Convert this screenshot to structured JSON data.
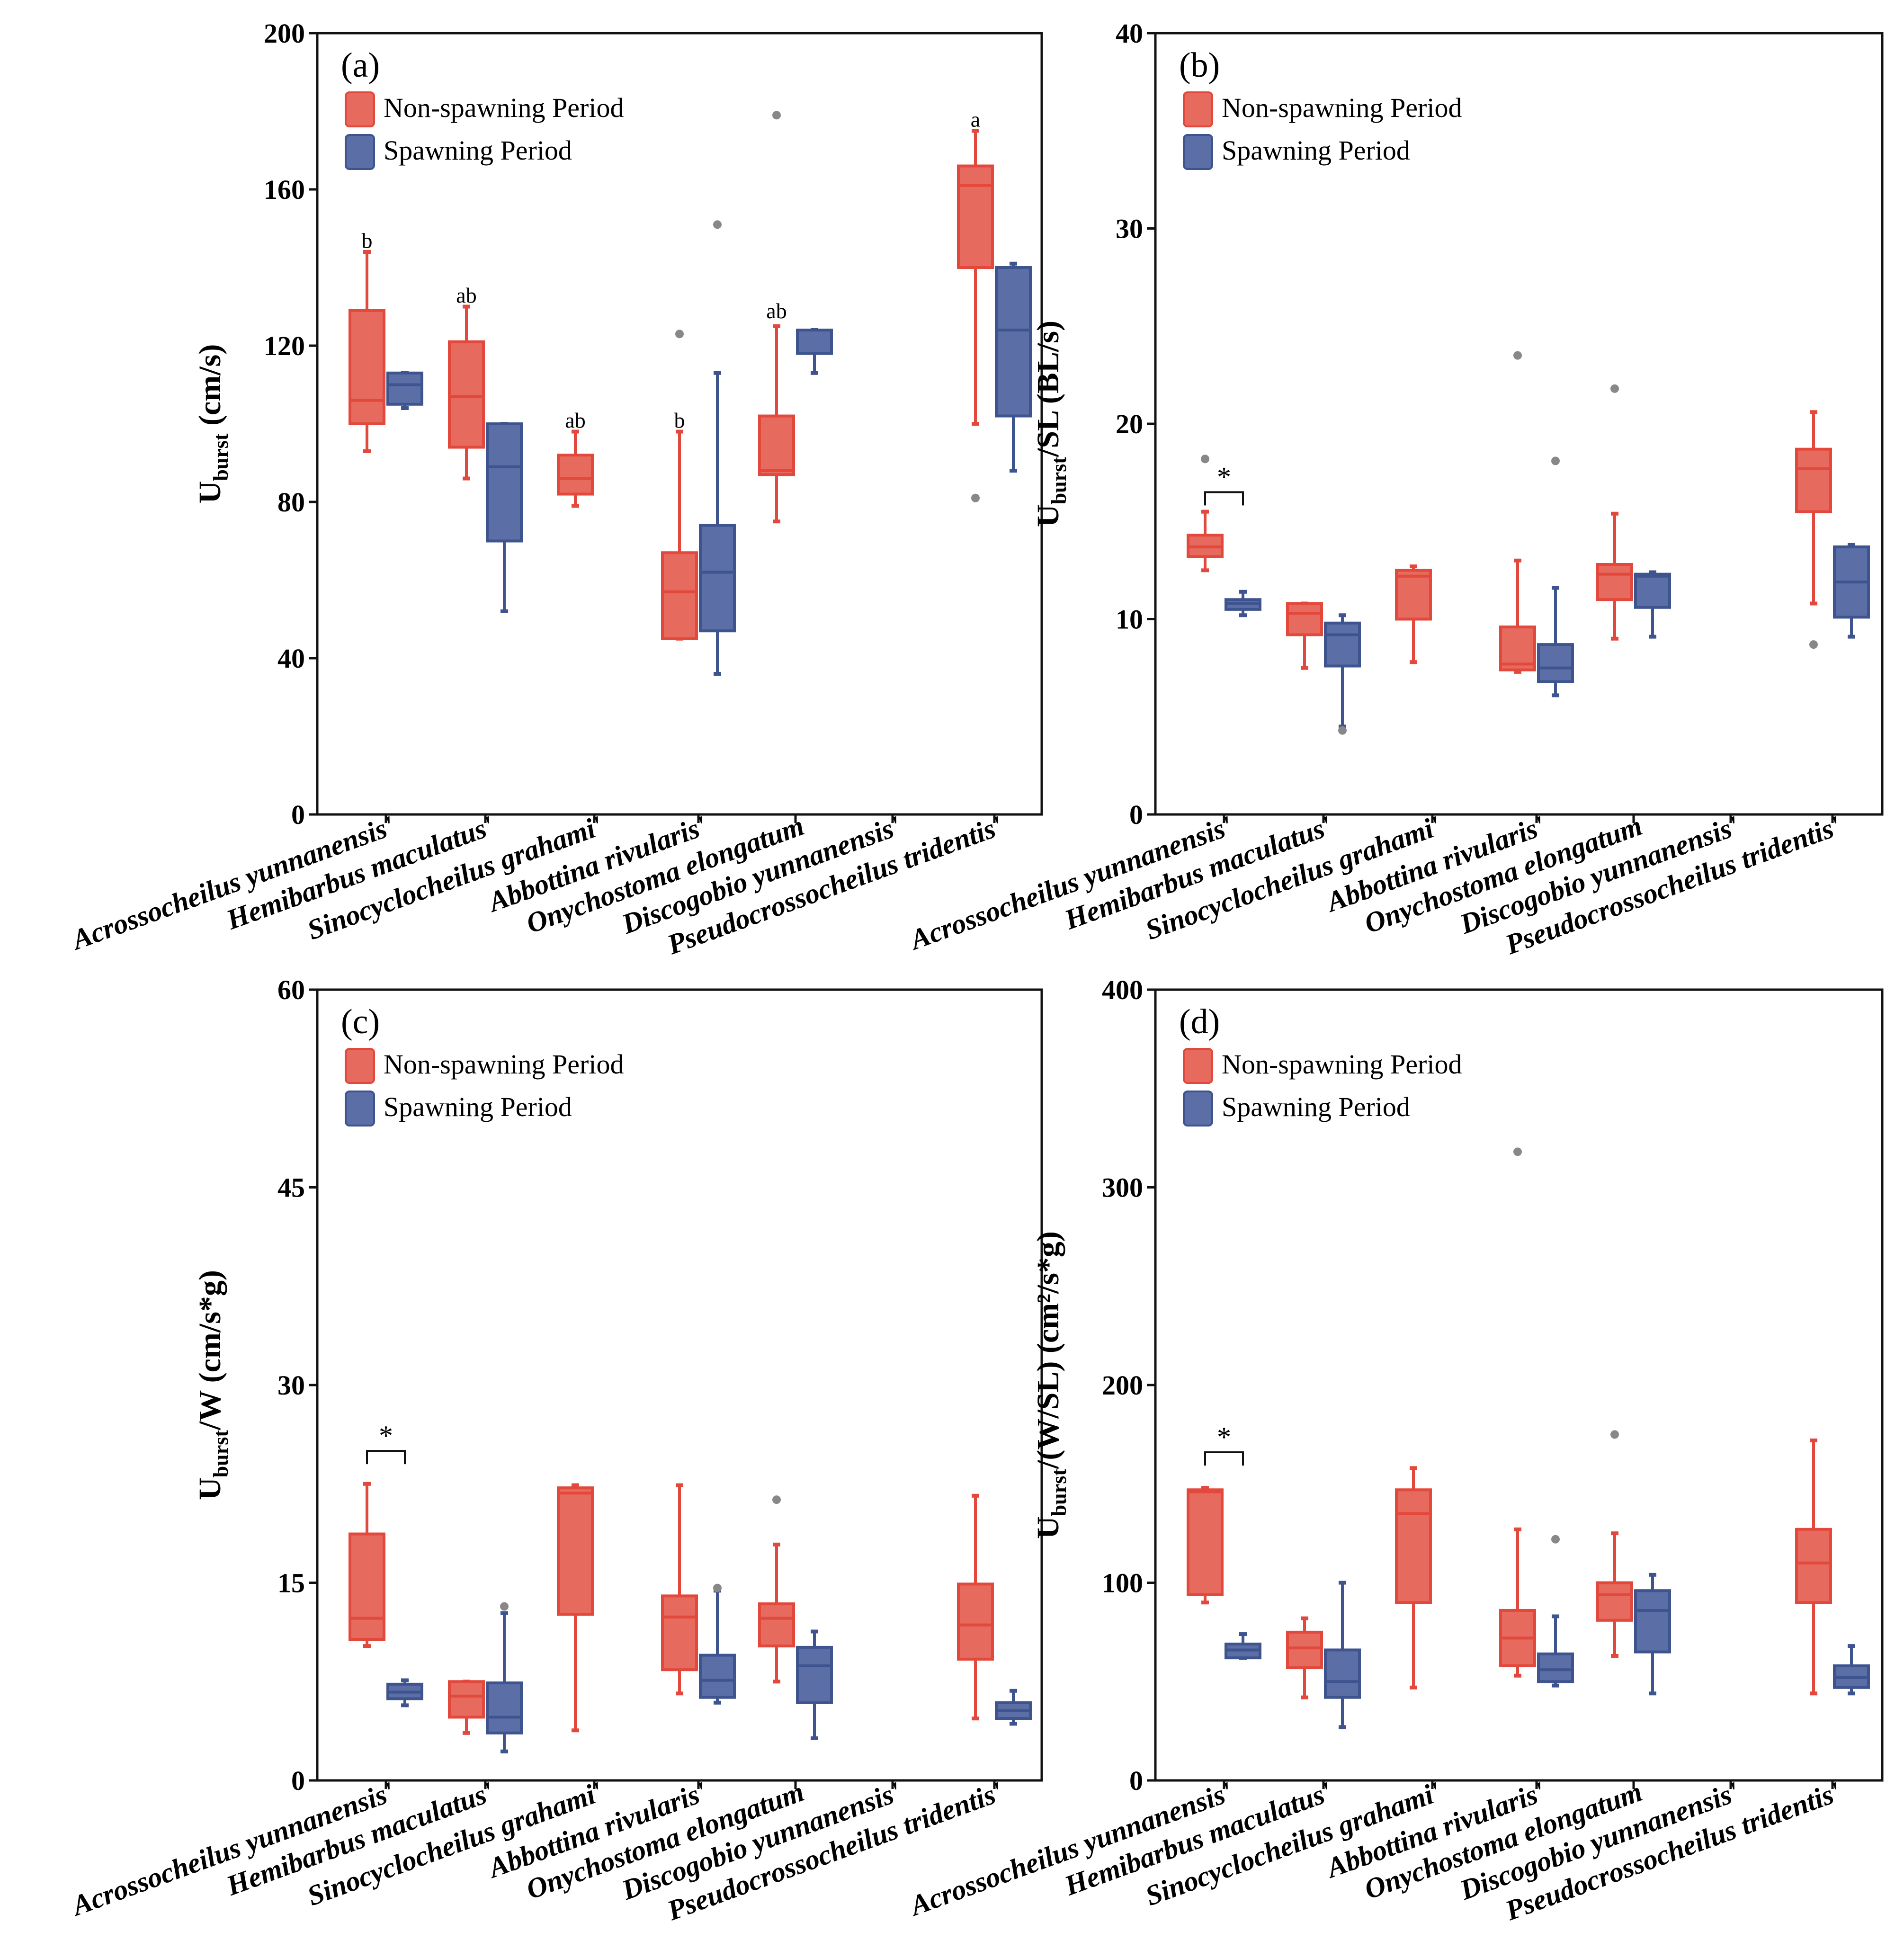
{
  "colors": {
    "non_spawning_fill": "#e66a5d",
    "non_spawning_edge": "#e2483c",
    "spawning_fill": "#5b6ea6",
    "spawning_edge": "#3e548f",
    "outlier": "#888888",
    "axis": "#111111"
  },
  "legend": {
    "non_spawning": "Non-spawning Period",
    "spawning": "Spawning Period"
  },
  "chart_data": [
    {
      "id": "a",
      "type": "box",
      "panel_label": "(a)",
      "ylabel": {
        "main": "U",
        "sub": "burst",
        "rest": " (cm/s)"
      },
      "ylim": [
        0,
        200
      ],
      "yticks": [
        0,
        40,
        80,
        120,
        160,
        200
      ],
      "categories": [
        "Acrossocheilus yunnanensis'",
        "Hemibarbus maculatus'",
        "Sinocyclocheilus grahami'",
        "Abbottina rivularis'",
        "Onychostoma elongatum",
        "Discogobio yunnanensis'",
        "Pseudocrossocheilus tridentis'"
      ],
      "series": [
        {
          "name": "Non-spawning Period",
          "boxes": [
            {
              "whislo": 93,
              "q1": 100,
              "med": 106,
              "q3": 129,
              "whishi": 144,
              "fliers": []
            },
            {
              "whislo": 86,
              "q1": 94,
              "med": 107,
              "q3": 121,
              "whishi": 130,
              "fliers": []
            },
            {
              "whislo": 79,
              "q1": 82,
              "med": 86,
              "q3": 92,
              "whishi": 98,
              "fliers": []
            },
            {
              "whislo": 45,
              "q1": 45,
              "med": 57,
              "q3": 67,
              "whishi": 98,
              "fliers": [
                123
              ]
            },
            {
              "whislo": 75,
              "q1": 87,
              "med": 88,
              "q3": 102,
              "whishi": 125,
              "fliers": [
                179
              ]
            },
            null,
            {
              "whislo": 100,
              "q1": 140,
              "med": 161,
              "q3": 166,
              "whishi": 175,
              "fliers": [
                81
              ]
            }
          ]
        },
        {
          "name": "Spawning Period",
          "boxes": [
            {
              "whislo": 104,
              "q1": 105,
              "med": 110,
              "q3": 113,
              "whishi": 113,
              "fliers": []
            },
            {
              "whislo": 52,
              "q1": 70,
              "med": 89,
              "q3": 100,
              "whishi": 100,
              "fliers": []
            },
            null,
            {
              "whislo": 36,
              "q1": 47,
              "med": 62,
              "q3": 74,
              "whishi": 113,
              "fliers": [
                151
              ]
            },
            {
              "whislo": 113,
              "q1": 118,
              "med": 118,
              "q3": 124,
              "whishi": 124,
              "fliers": []
            },
            null,
            {
              "whislo": 88,
              "q1": 102,
              "med": 124,
              "q3": 140,
              "whishi": 141,
              "fliers": []
            }
          ]
        }
      ],
      "annotations": [
        {
          "text": "b",
          "category": 0,
          "y": 147
        },
        {
          "text": "ab",
          "category": 1,
          "y": 133
        },
        {
          "text": "ab",
          "category": 2,
          "y": 101
        },
        {
          "text": "b",
          "category": 3,
          "y": 101
        },
        {
          "text": "ab",
          "category": 4,
          "y": 129
        },
        {
          "text": "a",
          "category": 6,
          "y": 178
        }
      ],
      "sig_brackets": []
    },
    {
      "id": "b",
      "type": "box",
      "panel_label": "(b)",
      "ylabel": {
        "main": "U",
        "sub": "burst",
        "rest": "/SL (BL/s)"
      },
      "ylim": [
        0,
        40
      ],
      "yticks": [
        0,
        10,
        20,
        30,
        40
      ],
      "categories": [
        "Acrossocheilus yunnanensis'",
        "Hemibarbus maculatus'",
        "Sinocyclocheilus grahami'",
        "Abbottina rivularis'",
        "Onychostoma elongatum",
        "Discogobio yunnanensis'",
        "Pseudocrossocheilus tridentis'"
      ],
      "series": [
        {
          "name": "Non-spawning Period",
          "boxes": [
            {
              "whislo": 12.5,
              "q1": 13.2,
              "med": 13.7,
              "q3": 14.3,
              "whishi": 15.5,
              "fliers": [
                18.2
              ]
            },
            {
              "whislo": 7.5,
              "q1": 9.2,
              "med": 10.3,
              "q3": 10.8,
              "whishi": 10.8,
              "fliers": []
            },
            {
              "whislo": 7.8,
              "q1": 10.0,
              "med": 12.2,
              "q3": 12.5,
              "whishi": 12.7,
              "fliers": []
            },
            {
              "whislo": 7.3,
              "q1": 7.4,
              "med": 7.7,
              "q3": 9.6,
              "whishi": 13.0,
              "fliers": [
                23.5
              ]
            },
            {
              "whislo": 9.0,
              "q1": 11.0,
              "med": 12.3,
              "q3": 12.8,
              "whishi": 15.4,
              "fliers": [
                21.8
              ]
            },
            null,
            {
              "whislo": 10.8,
              "q1": 15.5,
              "med": 17.7,
              "q3": 18.7,
              "whishi": 20.6,
              "fliers": [
                8.7
              ]
            }
          ]
        },
        {
          "name": "Spawning Period",
          "boxes": [
            {
              "whislo": 10.2,
              "q1": 10.5,
              "med": 10.8,
              "q3": 11.0,
              "whishi": 11.4,
              "fliers": []
            },
            {
              "whislo": 4.5,
              "q1": 7.6,
              "med": 9.2,
              "q3": 9.8,
              "whishi": 10.2,
              "fliers": [
                4.3
              ]
            },
            null,
            {
              "whislo": 6.1,
              "q1": 6.8,
              "med": 7.5,
              "q3": 8.7,
              "whishi": 11.6,
              "fliers": [
                18.1
              ]
            },
            {
              "whislo": 9.1,
              "q1": 10.6,
              "med": 12.2,
              "q3": 12.3,
              "whishi": 12.4,
              "fliers": []
            },
            null,
            {
              "whislo": 9.1,
              "q1": 10.1,
              "med": 11.9,
              "q3": 13.7,
              "whishi": 13.8,
              "fliers": []
            }
          ]
        }
      ],
      "annotations": [],
      "sig_brackets": [
        {
          "text": "*",
          "category": 0,
          "y": 16.5
        }
      ]
    },
    {
      "id": "c",
      "type": "box",
      "panel_label": "(c)",
      "ylabel": {
        "main": "U",
        "sub": "burst",
        "rest": "/W (cm/s*g)"
      },
      "ylim": [
        0,
        60
      ],
      "yticks": [
        0,
        15,
        30,
        45,
        60
      ],
      "categories": [
        "Acrossocheilus yunnanensis'",
        "Hemibarbus maculatus'",
        "Sinocyclocheilus grahami'",
        "Abbottina rivularis'",
        "Onychostoma elongatum",
        "Discogobio yunnanensis'",
        "Pseudocrossocheilus tridentis'"
      ],
      "series": [
        {
          "name": "Non-spawning Period",
          "boxes": [
            {
              "whislo": 10.2,
              "q1": 10.7,
              "med": 12.3,
              "q3": 18.7,
              "whishi": 22.5,
              "fliers": []
            },
            {
              "whislo": 3.6,
              "q1": 4.8,
              "med": 6.4,
              "q3": 7.5,
              "whishi": 7.5,
              "fliers": []
            },
            {
              "whislo": 3.8,
              "q1": 12.6,
              "med": 21.8,
              "q3": 22.2,
              "whishi": 22.4,
              "fliers": []
            },
            {
              "whislo": 6.6,
              "q1": 8.4,
              "med": 12.4,
              "q3": 14.0,
              "whishi": 22.4,
              "fliers": []
            },
            {
              "whislo": 7.5,
              "q1": 10.2,
              "med": 12.3,
              "q3": 13.4,
              "whishi": 17.9,
              "fliers": [
                21.3
              ]
            },
            null,
            {
              "whislo": 4.7,
              "q1": 9.2,
              "med": 11.8,
              "q3": 14.9,
              "whishi": 21.6,
              "fliers": []
            }
          ]
        },
        {
          "name": "Spawning Period",
          "boxes": [
            {
              "whislo": 5.7,
              "q1": 6.2,
              "med": 6.7,
              "q3": 7.3,
              "whishi": 7.6,
              "fliers": []
            },
            {
              "whislo": 2.2,
              "q1": 3.6,
              "med": 4.8,
              "q3": 7.4,
              "whishi": 12.7,
              "fliers": [
                13.2
              ]
            },
            null,
            {
              "whislo": 5.9,
              "q1": 6.3,
              "med": 7.6,
              "q3": 9.5,
              "whishi": 14.4,
              "fliers": [
                14.6
              ]
            },
            {
              "whislo": 3.2,
              "q1": 5.9,
              "med": 8.7,
              "q3": 10.1,
              "whishi": 11.3,
              "fliers": []
            },
            null,
            {
              "whislo": 4.3,
              "q1": 4.7,
              "med": 5.3,
              "q3": 5.9,
              "whishi": 6.8,
              "fliers": []
            }
          ]
        }
      ],
      "annotations": [],
      "sig_brackets": [
        {
          "text": "*",
          "category": 0,
          "y": 25
        }
      ]
    },
    {
      "id": "d",
      "type": "box",
      "panel_label": "(d)",
      "ylabel": {
        "main": "U",
        "sub": "burst",
        "rest": "/(W/SL) (cm²/s*g)"
      },
      "ylim": [
        0,
        400
      ],
      "yticks": [
        0,
        100,
        200,
        300,
        400
      ],
      "categories": [
        "Acrossocheilus yunnanensis'",
        "Hemibarbus maculatus'",
        "Sinocyclocheilus grahami'",
        "Abbottina rivularis'",
        "Onychostoma elongatum",
        "Discogobio yunnanensis'",
        "Pseudocrossocheilus tridentis'"
      ],
      "series": [
        {
          "name": "Non-spawning Period",
          "boxes": [
            {
              "whislo": 90,
              "q1": 94,
              "med": 146,
              "q3": 147,
              "whishi": 148,
              "fliers": []
            },
            {
              "whislo": 42,
              "q1": 57,
              "med": 67,
              "q3": 75,
              "whishi": 82,
              "fliers": []
            },
            {
              "whislo": 47,
              "q1": 90,
              "med": 135,
              "q3": 147,
              "whishi": 158,
              "fliers": []
            },
            {
              "whislo": 53,
              "q1": 58,
              "med": 72,
              "q3": 86,
              "whishi": 127,
              "fliers": [
                318
              ]
            },
            {
              "whislo": 63,
              "q1": 81,
              "med": 94,
              "q3": 100,
              "whishi": 125,
              "fliers": [
                175
              ]
            },
            null,
            {
              "whislo": 44,
              "q1": 90,
              "med": 110,
              "q3": 127,
              "whishi": 172,
              "fliers": []
            }
          ]
        },
        {
          "name": "Spawning Period",
          "boxes": [
            {
              "whislo": 62,
              "q1": 62,
              "med": 66,
              "q3": 69,
              "whishi": 74,
              "fliers": []
            },
            {
              "whislo": 27,
              "q1": 42,
              "med": 50,
              "q3": 66,
              "whishi": 100,
              "fliers": []
            },
            null,
            {
              "whislo": 48,
              "q1": 50,
              "med": 56,
              "q3": 64,
              "whishi": 83,
              "fliers": [
                122
              ]
            },
            {
              "whislo": 44,
              "q1": 65,
              "med": 86,
              "q3": 96,
              "whishi": 104,
              "fliers": []
            },
            null,
            {
              "whislo": 44,
              "q1": 47,
              "med": 52,
              "q3": 58,
              "whishi": 68,
              "fliers": []
            }
          ]
        }
      ],
      "annotations": [],
      "sig_brackets": [
        {
          "text": "*",
          "category": 0,
          "y": 166
        }
      ]
    }
  ]
}
